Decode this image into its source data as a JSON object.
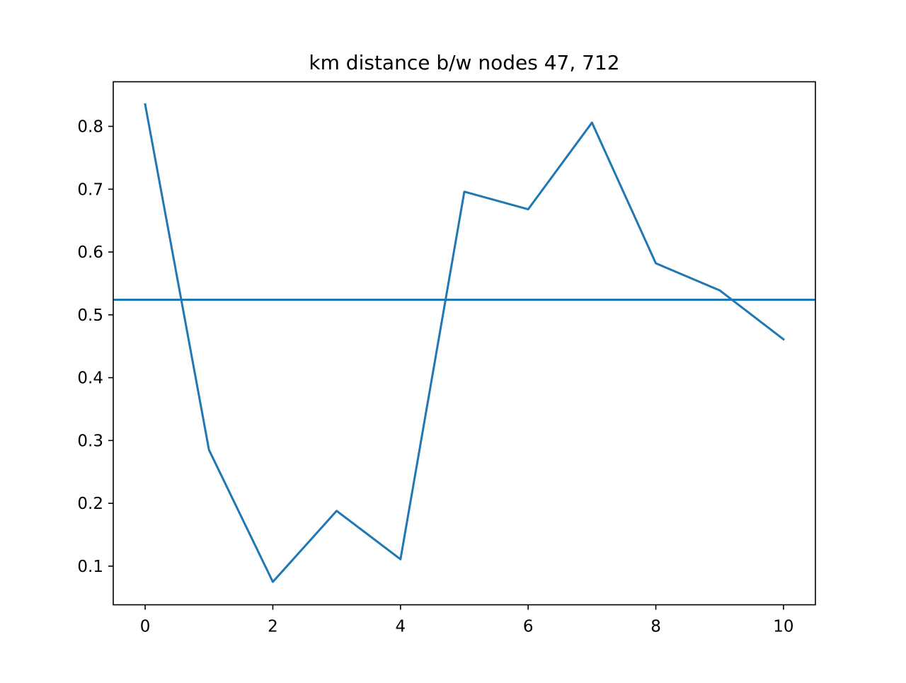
{
  "chart_data": {
    "type": "line",
    "title": "km distance b/w nodes 47, 712",
    "xlabel": "",
    "ylabel": "",
    "x": [
      0,
      1,
      2,
      3,
      4,
      5,
      6,
      7,
      8,
      9,
      10
    ],
    "series": [
      {
        "values": [
          0.835,
          0.285,
          0.075,
          0.188,
          0.111,
          0.696,
          0.668,
          0.806,
          0.582,
          0.539,
          0.461
        ],
        "color": "#1f77b4"
      }
    ],
    "hlines": [
      {
        "y": 0.524,
        "color": "#1f77b4"
      }
    ],
    "xlim": [
      -0.5,
      10.5
    ],
    "ylim": [
      0.0385,
      0.871
    ],
    "xticks": [
      0,
      2,
      4,
      6,
      8,
      10
    ],
    "xtick_labels": [
      "0",
      "2",
      "4",
      "6",
      "8",
      "10"
    ],
    "yticks": [
      0.1,
      0.2,
      0.3,
      0.4,
      0.5,
      0.6,
      0.7,
      0.8
    ],
    "ytick_labels": [
      "0.1",
      "0.2",
      "0.3",
      "0.4",
      "0.5",
      "0.6",
      "0.7",
      "0.8"
    ],
    "grid": false,
    "legend": "none"
  }
}
